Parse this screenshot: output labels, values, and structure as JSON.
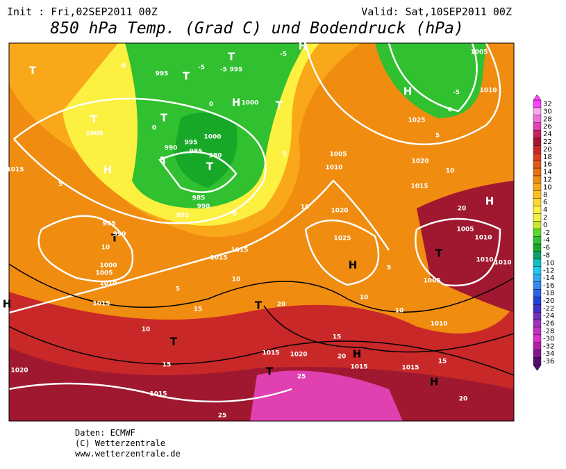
{
  "header": {
    "init": "Init : Fri,02SEP2011 00Z",
    "valid": "Valid: Sat,10SEP2011 00Z",
    "title": "850 hPa Temp. (Grad C) und Bodendruck (hPa)"
  },
  "colorbar": {
    "levels": [
      32,
      30,
      28,
      26,
      24,
      22,
      20,
      18,
      16,
      14,
      12,
      10,
      8,
      6,
      4,
      2,
      0,
      -2,
      -4,
      -6,
      -8,
      -10,
      -12,
      -14,
      -16,
      -18,
      -20,
      -22,
      -24,
      -26,
      -28,
      -30,
      -32,
      -34,
      -36
    ],
    "colors": [
      "#ff40ff",
      "#f8a8f0",
      "#f070d8",
      "#e040b0",
      "#c8205c",
      "#a01830",
      "#c82828",
      "#d84020",
      "#e05818",
      "#e87010",
      "#f08c10",
      "#f8a818",
      "#fcc020",
      "#fcd830",
      "#fcf040",
      "#f0f040",
      "#c8e830",
      "#58d828",
      "#30c030",
      "#18a828",
      "#10a070",
      "#10c0c0",
      "#20c8f0",
      "#30a8f0",
      "#3888f0",
      "#3060e8",
      "#2040d8",
      "#4030c8",
      "#7030c0",
      "#a030c0",
      "#c030c0",
      "#d830c8",
      "#b020a8",
      "#801890",
      "#501070"
    ]
  },
  "map_labels": [
    "T",
    "T",
    "T",
    "T",
    "T",
    "T",
    "H",
    "H",
    "T",
    "H",
    "H",
    "T",
    "T",
    "T",
    "T",
    "H",
    "T",
    "T",
    "H",
    "H",
    "H",
    "H",
    "995",
    "995",
    "995",
    "1000",
    "1000",
    "1000",
    "995",
    "990",
    "985",
    "980",
    "985",
    "990",
    "995",
    "1015",
    "995",
    "990",
    "1000",
    "1005",
    "1010",
    "1015",
    "1015",
    "1015",
    "1025",
    "1020",
    "1015",
    "1005",
    "1010",
    "1020",
    "1025",
    "1005",
    "1010",
    "1005",
    "1010",
    "1010",
    "1010",
    "1005",
    "1010",
    "1015",
    "1020",
    "1015",
    "1015",
    "1020",
    "1015",
    "-5",
    "-5",
    "-5",
    "-5",
    "0",
    "0",
    "0",
    "0",
    "0",
    "5",
    "5",
    "5",
    "5",
    "5",
    "10",
    "10",
    "10",
    "10",
    "10",
    "10",
    "10",
    "15",
    "15",
    "15",
    "15",
    "20",
    "20",
    "20",
    "20",
    "25",
    "25"
  ],
  "footer": {
    "source": "Daten: ECMWF",
    "copyright": "(C) Wetterzentrale",
    "url": "www.wetterzentrale.de"
  }
}
